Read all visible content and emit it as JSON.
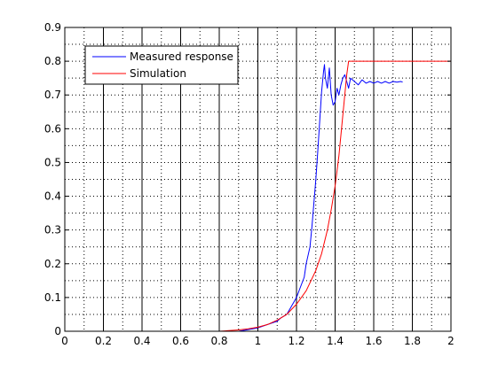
{
  "chart_data": {
    "type": "line",
    "title": "",
    "xlabel": "",
    "ylabel": "",
    "xlim": [
      0,
      2
    ],
    "ylim": [
      0,
      0.9
    ],
    "x_ticks": [
      0,
      0.2,
      0.4,
      0.6,
      0.8,
      1,
      1.2,
      1.4,
      1.6,
      1.8,
      2
    ],
    "x_tick_labels": [
      "0",
      "0.2",
      "0.4",
      "0.6",
      "0.8",
      "1",
      "1.2",
      "1.4",
      "1.6",
      "1.8",
      "2"
    ],
    "y_ticks": [
      0,
      0.1,
      0.2,
      0.3,
      0.4,
      0.5,
      0.6,
      0.7,
      0.8,
      0.9
    ],
    "y_tick_labels": [
      "0",
      "0.1",
      "0.2",
      "0.3",
      "0.4",
      "0.5",
      "0.6",
      "0.7",
      "0.8",
      "0.9"
    ],
    "grid": "major solid vertical lines and dotted minor grid",
    "legend_position": "top-left",
    "series": [
      {
        "name": "Measured response",
        "color": "#0000ff",
        "x": [
          0,
          0.9,
          1.0,
          1.05,
          1.1,
          1.12,
          1.15,
          1.17,
          1.2,
          1.22,
          1.24,
          1.25,
          1.27,
          1.28,
          1.29,
          1.3,
          1.31,
          1.32,
          1.33,
          1.34,
          1.345,
          1.35,
          1.36,
          1.37,
          1.38,
          1.39,
          1.4,
          1.41,
          1.42,
          1.43,
          1.44,
          1.45,
          1.46,
          1.47,
          1.48,
          1.5,
          1.52,
          1.54,
          1.56,
          1.58,
          1.6,
          1.62,
          1.64,
          1.66,
          1.68,
          1.7,
          1.72,
          1.74,
          1.75
        ],
        "y": [
          0,
          0,
          0.01,
          0.02,
          0.03,
          0.04,
          0.05,
          0.07,
          0.1,
          0.13,
          0.16,
          0.2,
          0.25,
          0.31,
          0.38,
          0.45,
          0.53,
          0.62,
          0.71,
          0.77,
          0.79,
          0.75,
          0.72,
          0.78,
          0.7,
          0.67,
          0.68,
          0.72,
          0.7,
          0.73,
          0.75,
          0.76,
          0.74,
          0.72,
          0.75,
          0.74,
          0.73,
          0.745,
          0.735,
          0.74,
          0.735,
          0.74,
          0.735,
          0.74,
          0.735,
          0.74,
          0.738,
          0.74,
          0.738
        ]
      },
      {
        "name": "Simulation",
        "color": "#ff0000",
        "x": [
          0,
          0.8,
          0.9,
          0.95,
          1.0,
          1.05,
          1.1,
          1.15,
          1.2,
          1.25,
          1.3,
          1.33,
          1.36,
          1.38,
          1.4,
          1.42,
          1.44,
          1.46,
          1.47,
          2.0
        ],
        "y": [
          0,
          0,
          0.004,
          0.007,
          0.012,
          0.02,
          0.033,
          0.05,
          0.08,
          0.12,
          0.18,
          0.23,
          0.3,
          0.36,
          0.43,
          0.52,
          0.64,
          0.76,
          0.8,
          0.8
        ]
      }
    ]
  }
}
